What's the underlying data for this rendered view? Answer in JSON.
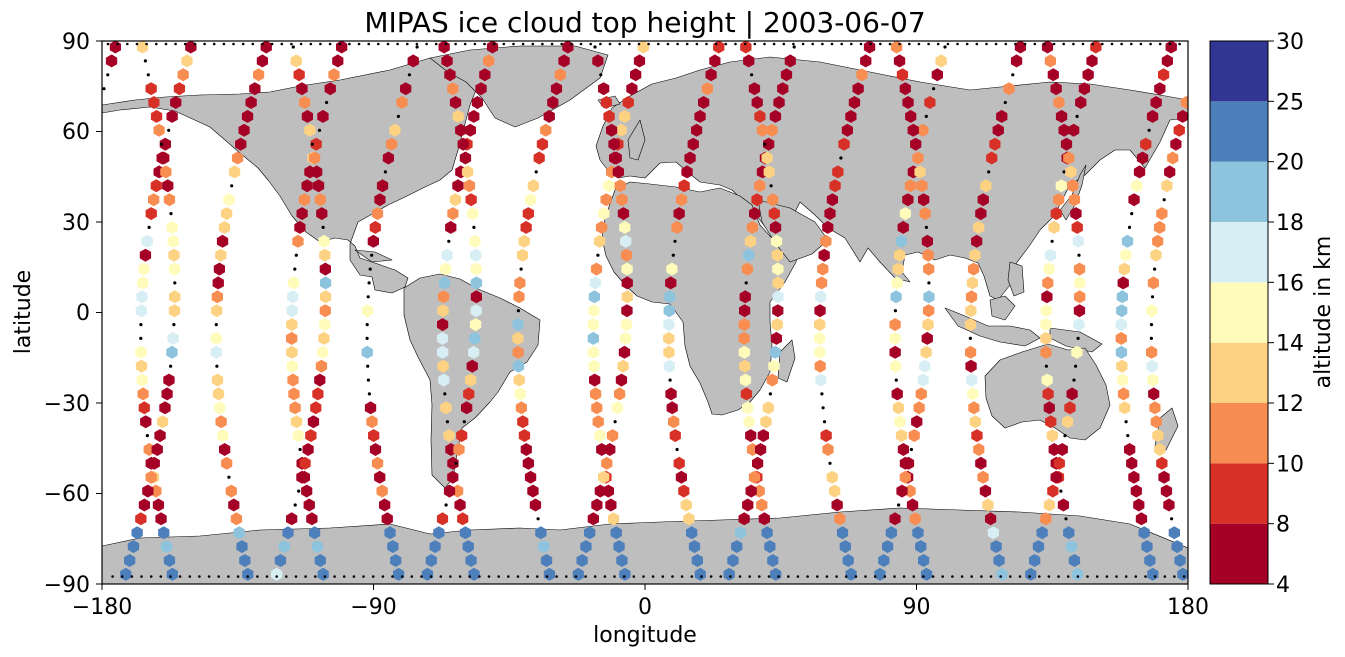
{
  "chart_data": {
    "type": "scatter",
    "title": "MIPAS ice cloud top height | 2003-06-07",
    "xlabel": "longitude",
    "ylabel": "latitude",
    "xlim": [
      -180,
      180
    ],
    "ylim": [
      -90,
      90
    ],
    "xticks": [
      "−180",
      "−90",
      "0",
      "90",
      "180"
    ],
    "yticks": [
      "−90",
      "−60",
      "−30",
      "0",
      "30",
      "60",
      "90"
    ],
    "colorbar": {
      "label": "altitude in km",
      "boundaries": [
        4,
        8,
        10,
        12,
        14,
        16,
        18,
        20,
        25,
        30
      ],
      "tick_labels": [
        "4",
        "8",
        "10",
        "12",
        "14",
        "16",
        "18",
        "20",
        "25",
        "30"
      ],
      "colors": [
        "#a50026",
        "#d73027",
        "#f88d52",
        "#fdd283",
        "#fffcbb",
        "#d8eef5",
        "#8dc3dd",
        "#4d7fbb",
        "#313695"
      ]
    },
    "map": {
      "land_color": "#bebebe",
      "ocean_color": "#ffffff",
      "coastline_color": "#000000"
    },
    "marker": "hexagon",
    "no_cloud_marker": {
      "type": "dot",
      "color": "#000000"
    },
    "orbits": [
      {
        "lon0": -178,
        "dir": -1
      },
      {
        "lon0": -153,
        "dir": -1
      },
      {
        "lon0": -128,
        "dir": -1
      },
      {
        "lon0": -103,
        "dir": -1
      },
      {
        "lon0": -78,
        "dir": -1
      },
      {
        "lon0": -53,
        "dir": -1
      },
      {
        "lon0": -28,
        "dir": -1
      },
      {
        "lon0": -3,
        "dir": -1
      },
      {
        "lon0": 22,
        "dir": -1
      },
      {
        "lon0": 47,
        "dir": -1
      },
      {
        "lon0": 72,
        "dir": -1
      },
      {
        "lon0": 97,
        "dir": -1
      },
      {
        "lon0": 122,
        "dir": -1
      },
      {
        "lon0": 147,
        "dir": -1
      },
      {
        "lon0": 172,
        "dir": -1
      },
      {
        "lon0": -170,
        "dir": 1
      },
      {
        "lon0": -120,
        "dir": 1
      },
      {
        "lon0": -70,
        "dir": 1
      },
      {
        "lon0": -20,
        "dir": 1
      },
      {
        "lon0": 30,
        "dir": 1
      },
      {
        "lon0": 80,
        "dir": 1
      },
      {
        "lon0": 130,
        "dir": 1
      }
    ]
  }
}
